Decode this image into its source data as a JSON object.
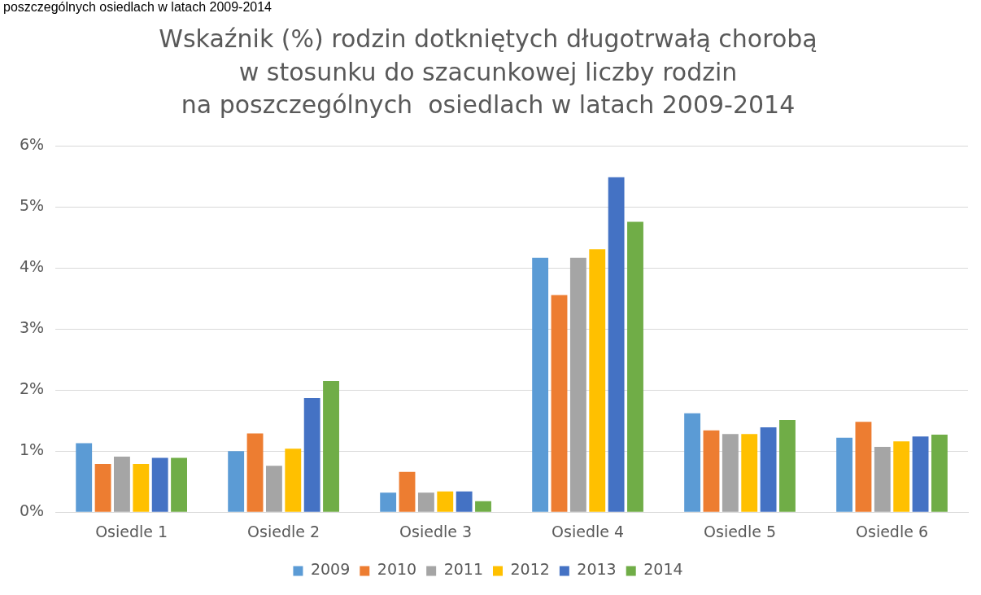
{
  "chart_data": {
    "type": "bar",
    "title": [
      "Wskaźnik (%) rodzin dotkniętych długotrwałą chorobą",
      "w stosunku do szacunkowej liczby rodzin",
      "na poszczególnych  osiedlach w latach 2009-2014"
    ],
    "annotations": [
      "poszczególnych osiedlach w latach 2009-2014"
    ],
    "categories": [
      "Osiedle 1",
      "Osiedle 2",
      "Osiedle 3",
      "Osiedle 4",
      "Osiedle 5",
      "Osiedle 6"
    ],
    "series": [
      {
        "name": "2009",
        "color": "#5b9bd5",
        "values": [
          1.13,
          1.0,
          0.32,
          4.17,
          1.62,
          1.22
        ]
      },
      {
        "name": "2010",
        "color": "#ed7d31",
        "values": [
          0.79,
          1.29,
          0.66,
          3.56,
          1.34,
          1.48
        ]
      },
      {
        "name": "2011",
        "color": "#a5a5a5",
        "values": [
          0.91,
          0.76,
          0.32,
          4.17,
          1.28,
          1.07
        ]
      },
      {
        "name": "2012",
        "color": "#ffc000",
        "values": [
          0.79,
          1.04,
          0.34,
          4.31,
          1.28,
          1.16
        ]
      },
      {
        "name": "2013",
        "color": "#4472c4",
        "values": [
          0.89,
          1.87,
          0.34,
          5.49,
          1.39,
          1.24
        ]
      },
      {
        "name": "2014",
        "color": "#70ad47",
        "values": [
          0.89,
          2.15,
          0.18,
          4.76,
          1.51,
          1.27
        ]
      }
    ],
    "ylim": [
      0,
      6
    ],
    "yticks": [
      {
        "value": 0,
        "label": "0%"
      },
      {
        "value": 1,
        "label": "1%"
      },
      {
        "value": 2,
        "label": "2%"
      },
      {
        "value": 3,
        "label": "3%"
      },
      {
        "value": 4,
        "label": "4%"
      },
      {
        "value": 5,
        "label": "5%"
      },
      {
        "value": 6,
        "label": "6%"
      }
    ],
    "grid": "y",
    "legend": "bottom"
  }
}
